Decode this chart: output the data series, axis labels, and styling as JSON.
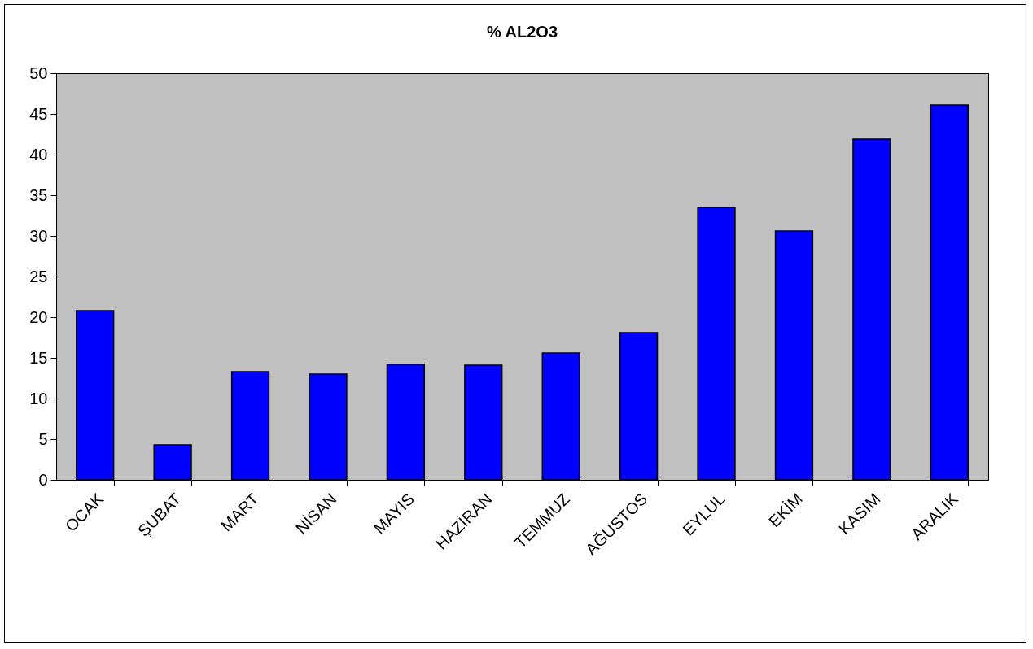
{
  "chart_data": {
    "type": "bar",
    "title": "%  AL2O3",
    "categories": [
      "OCAK",
      "ŞUBAT",
      "MART",
      "NİSAN",
      "MAYIS",
      "HAZİRAN",
      "TEMMUZ",
      "AĞUSTOS",
      "EYLUL",
      "EKİM",
      "KASIM",
      "ARALIK"
    ],
    "values": [
      20.8,
      4.3,
      13.3,
      13.0,
      14.2,
      14.1,
      15.6,
      18.1,
      33.5,
      30.6,
      41.9,
      46.1
    ],
    "color": "#0000ff",
    "ylim": [
      0,
      50
    ],
    "yticks": [
      0,
      5,
      10,
      15,
      20,
      25,
      30,
      35,
      40,
      45,
      50
    ],
    "grid": false,
    "legend": false
  }
}
